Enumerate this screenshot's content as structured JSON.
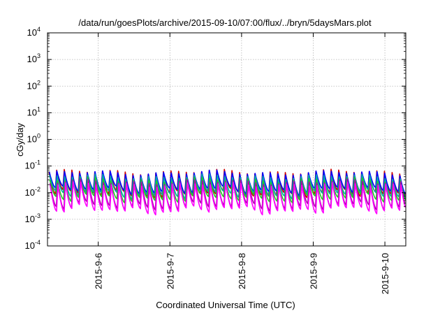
{
  "chart_data": {
    "type": "line",
    "title": "/data/run/goesPlots/archive/2015-09-10/07:00/flux/../bryn/5daysMars.plot",
    "xlabel": "Coordinated Universal Time (UTC)",
    "ylabel": "cGy/day",
    "yscale": "log",
    "ylim": [
      0.0001,
      10000
    ],
    "xlim": [
      "2015-09-05T07:00",
      "2015-09-10T07:00"
    ],
    "grid": true,
    "x_ticks": [
      "2015-9-6",
      "2015-9-7",
      "2015-9-8",
      "2015-9-9",
      "2015-9-10"
    ],
    "y_ticks": [
      {
        "base": "10",
        "exp": "-4"
      },
      {
        "base": "10",
        "exp": "-3"
      },
      {
        "base": "10",
        "exp": "-2"
      },
      {
        "base": "10",
        "exp": "-1"
      },
      {
        "base": "10",
        "exp": "0"
      },
      {
        "base": "10",
        "exp": "1"
      },
      {
        "base": "10",
        "exp": "2"
      },
      {
        "base": "10",
        "exp": "3"
      },
      {
        "base": "10",
        "exp": "4"
      }
    ],
    "sawtooth_cycles": 47,
    "series": [
      {
        "color": "#cc0000",
        "peak": 0.06,
        "trough": 0.009
      },
      {
        "color": "#0000ff",
        "peak": 0.055,
        "trough": 0.012
      },
      {
        "color": "#00aaaa",
        "peak": 0.04,
        "trough": 0.0085
      },
      {
        "color": "#22cc22",
        "peak": 0.03,
        "trough": 0.006
      },
      {
        "color": "#aa00aa",
        "peak": 0.025,
        "trough": 0.003
      },
      {
        "color": "#ff00ff",
        "peak": 0.02,
        "trough": 0.0022
      }
    ]
  }
}
